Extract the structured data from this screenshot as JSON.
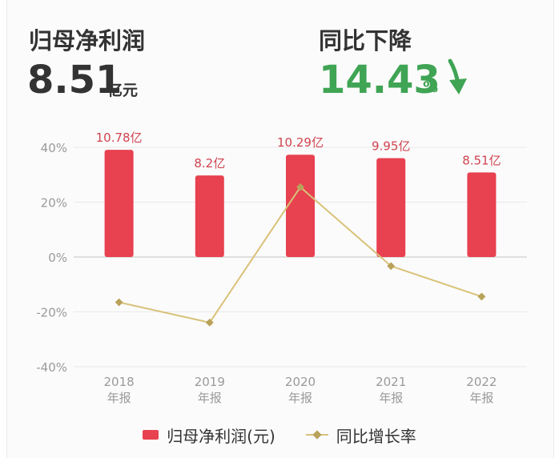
{
  "header": {
    "profit_label": "归母净利润",
    "profit_value": "8.51",
    "profit_unit": "亿元",
    "change_label": "同比下降",
    "change_value": "14.43",
    "change_unit": "%",
    "change_icon": "arrow-down-icon"
  },
  "colors": {
    "bar": "#e8414f",
    "line": "#d8c27a",
    "marker": "#b9a25a",
    "bar_label": "#d0434f",
    "green": "#3fa454",
    "axis_text": "#9a9a9a",
    "grid": "#e9e9e9"
  },
  "chart_data": {
    "type": "bar",
    "categories": [
      "2018\n年报",
      "2019\n年报",
      "2020\n年报",
      "2021\n年报",
      "2022\n年报"
    ],
    "series": [
      {
        "name": "归母净利润(元)",
        "type": "bar",
        "values": [
          10.78,
          8.2,
          10.29,
          9.95,
          8.51
        ],
        "labels": [
          "10.78亿",
          "8.2亿",
          "10.29亿",
          "9.95亿",
          "8.51亿"
        ]
      },
      {
        "name": "同比增长率",
        "type": "line",
        "values": [
          -16.5,
          -23.9,
          25.5,
          -3.3,
          -14.43
        ]
      }
    ],
    "y_ticks": [
      "40%",
      "20%",
      "0%",
      "-20%",
      "-40%"
    ],
    "ylim_percent": [
      -40,
      40
    ],
    "grid": true,
    "legend_position": "bottom"
  }
}
